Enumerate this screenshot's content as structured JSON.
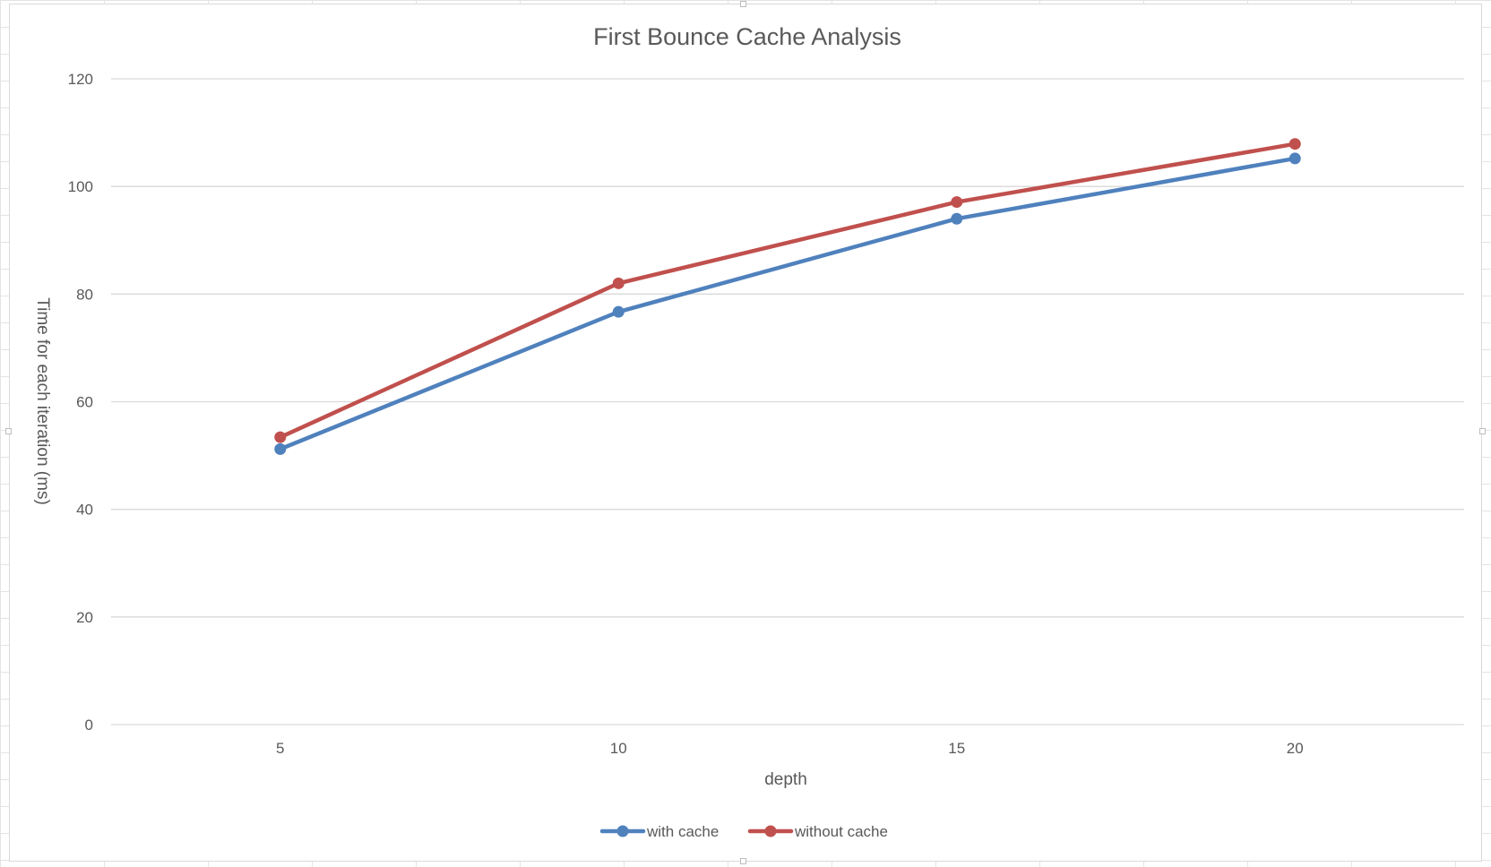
{
  "chart_data": {
    "type": "line",
    "title": "First Bounce Cache Analysis",
    "xlabel": "depth",
    "ylabel": "Time for each iteration (ms)",
    "categories": [
      "5",
      "10",
      "15",
      "20"
    ],
    "x": [
      5,
      10,
      15,
      20
    ],
    "ylim": [
      0,
      120
    ],
    "yticks": [
      "0",
      "20",
      "40",
      "60",
      "80",
      "100",
      "120"
    ],
    "grid": true,
    "legend_position": "bottom",
    "series": [
      {
        "name": "with cache",
        "color": "#4f81bd",
        "values": [
          51.2,
          76.7,
          94.0,
          105.2
        ]
      },
      {
        "name": "without cache",
        "color": "#c0504d",
        "values": [
          53.4,
          82.0,
          97.1,
          107.9
        ]
      }
    ]
  }
}
